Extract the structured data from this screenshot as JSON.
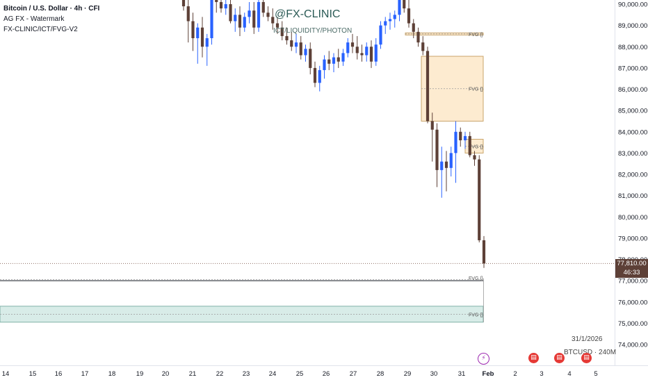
{
  "legend": {
    "symbol": "Bitcoin / U.S. Dollar · 4h · CFI",
    "indicator1": "AG FX - Watermark",
    "indicator2": "FX-CLINIC/ICT/FVG-V2"
  },
  "watermark": {
    "handle": "@FX-CLINIC",
    "subtitle": "ICT/LIQUIDITY/PHOTON"
  },
  "price_tag": {
    "price": "77,810.00",
    "countdown": "46:33"
  },
  "bottom": {
    "date": "31/1/2026",
    "symbol": "BTCUSD",
    "separator": "·",
    "timeframe": "240M"
  },
  "colors": {
    "bull": "#2962ff",
    "bear": "#5d4037",
    "fvg_fill": "#fdebd0",
    "fvg_border": "#c9a46a",
    "teal_fill": "#d8ece8",
    "teal_border": "#7fb0a6"
  },
  "fvg_label": "FVG {}",
  "chart_data": {
    "type": "candlestick",
    "symbol": "Bitcoin / U.S. Dollar",
    "interval": "4h",
    "ylim": [
      73500,
      90500
    ],
    "y_ticks": [
      74000,
      75000,
      76000,
      77000,
      78000,
      79000,
      80000,
      81000,
      82000,
      83000,
      84000,
      85000,
      86000,
      87000,
      88000,
      89000,
      90000
    ],
    "y_tick_labels": [
      "74,000.00",
      "75,000.00",
      "76,000.00",
      "77,000.00",
      "78,000.00",
      "79,000.00",
      "80,000.00",
      "81,000.00",
      "82,000.00",
      "83,000.00",
      "84,000.00",
      "85,000.00",
      "86,000.00",
      "87,000.00",
      "88,000.00",
      "89,000.00",
      "90,000.00"
    ],
    "x_tick_labels": [
      "14",
      "15",
      "16",
      "17",
      "18",
      "19",
      "20",
      "21",
      "22",
      "23",
      "24",
      "25",
      "26",
      "27",
      "28",
      "29",
      "30",
      "31",
      "Feb",
      "2",
      "3",
      "4",
      "5"
    ],
    "last_price": 77810,
    "candles": [
      {
        "o": 90300,
        "h": 90500,
        "l": 89700,
        "c": 89900
      },
      {
        "o": 89900,
        "h": 90200,
        "l": 88200,
        "c": 89200
      },
      {
        "o": 89200,
        "h": 89600,
        "l": 87800,
        "c": 88400
      },
      {
        "o": 88400,
        "h": 89100,
        "l": 87200,
        "c": 88900
      },
      {
        "o": 88900,
        "h": 89400,
        "l": 87500,
        "c": 88000
      },
      {
        "o": 88000,
        "h": 88600,
        "l": 87100,
        "c": 88400
      },
      {
        "o": 88400,
        "h": 90400,
        "l": 88100,
        "c": 90200
      },
      {
        "o": 90200,
        "h": 90500,
        "l": 89600,
        "c": 90100
      },
      {
        "o": 90100,
        "h": 90400,
        "l": 89600,
        "c": 89800
      },
      {
        "o": 89800,
        "h": 90300,
        "l": 89500,
        "c": 90000
      },
      {
        "o": 90000,
        "h": 90200,
        "l": 89100,
        "c": 89200
      },
      {
        "o": 89200,
        "h": 89800,
        "l": 88700,
        "c": 89500
      },
      {
        "o": 89500,
        "h": 89900,
        "l": 88500,
        "c": 88900
      },
      {
        "o": 88900,
        "h": 89600,
        "l": 88700,
        "c": 89400
      },
      {
        "o": 89400,
        "h": 90100,
        "l": 89100,
        "c": 89700
      },
      {
        "o": 89700,
        "h": 90100,
        "l": 88600,
        "c": 88900
      },
      {
        "o": 88900,
        "h": 90500,
        "l": 88700,
        "c": 90100
      },
      {
        "o": 90100,
        "h": 90300,
        "l": 89400,
        "c": 89600
      },
      {
        "o": 89600,
        "h": 89900,
        "l": 89200,
        "c": 89400
      },
      {
        "o": 89400,
        "h": 89800,
        "l": 88800,
        "c": 89100
      },
      {
        "o": 89100,
        "h": 89400,
        "l": 88600,
        "c": 88900
      },
      {
        "o": 88900,
        "h": 89200,
        "l": 88300,
        "c": 88500
      },
      {
        "o": 88500,
        "h": 88900,
        "l": 88100,
        "c": 88300
      },
      {
        "o": 88300,
        "h": 88700,
        "l": 87800,
        "c": 88000
      },
      {
        "o": 88000,
        "h": 88600,
        "l": 87700,
        "c": 88200
      },
      {
        "o": 88200,
        "h": 88500,
        "l": 87400,
        "c": 87600
      },
      {
        "o": 87600,
        "h": 88100,
        "l": 87300,
        "c": 87900
      },
      {
        "o": 87900,
        "h": 88200,
        "l": 86700,
        "c": 87000
      },
      {
        "o": 87000,
        "h": 87300,
        "l": 86100,
        "c": 86300
      },
      {
        "o": 86300,
        "h": 87100,
        "l": 85900,
        "c": 86900
      },
      {
        "o": 86900,
        "h": 87600,
        "l": 86500,
        "c": 87400
      },
      {
        "o": 87400,
        "h": 87800,
        "l": 86900,
        "c": 87200
      },
      {
        "o": 87200,
        "h": 87700,
        "l": 86800,
        "c": 87500
      },
      {
        "o": 87500,
        "h": 87900,
        "l": 87000,
        "c": 87300
      },
      {
        "o": 87300,
        "h": 87900,
        "l": 87100,
        "c": 87700
      },
      {
        "o": 87700,
        "h": 88400,
        "l": 87500,
        "c": 88200
      },
      {
        "o": 88200,
        "h": 88600,
        "l": 87700,
        "c": 88000
      },
      {
        "o": 88000,
        "h": 88500,
        "l": 87400,
        "c": 87700
      },
      {
        "o": 87700,
        "h": 88100,
        "l": 87300,
        "c": 87600
      },
      {
        "o": 87600,
        "h": 88200,
        "l": 87300,
        "c": 88000
      },
      {
        "o": 88000,
        "h": 88300,
        "l": 87000,
        "c": 87300
      },
      {
        "o": 87300,
        "h": 88400,
        "l": 87100,
        "c": 88100
      },
      {
        "o": 88100,
        "h": 89200,
        "l": 87900,
        "c": 89000
      },
      {
        "o": 89000,
        "h": 89400,
        "l": 88600,
        "c": 89200
      },
      {
        "o": 89200,
        "h": 89600,
        "l": 88800,
        "c": 89300
      },
      {
        "o": 89300,
        "h": 89700,
        "l": 88900,
        "c": 89500
      },
      {
        "o": 89500,
        "h": 90400,
        "l": 89200,
        "c": 90200
      },
      {
        "o": 90200,
        "h": 90500,
        "l": 89600,
        "c": 89800
      },
      {
        "o": 89800,
        "h": 90200,
        "l": 88900,
        "c": 89100
      },
      {
        "o": 89100,
        "h": 89300,
        "l": 88400,
        "c": 88700
      },
      {
        "o": 88700,
        "h": 88900,
        "l": 88000,
        "c": 88200
      },
      {
        "o": 88200,
        "h": 88500,
        "l": 87600,
        "c": 87800
      },
      {
        "o": 87800,
        "h": 88000,
        "l": 84400,
        "c": 84500
      },
      {
        "o": 84500,
        "h": 84900,
        "l": 82600,
        "c": 84100
      },
      {
        "o": 84100,
        "h": 84400,
        "l": 81400,
        "c": 82200
      },
      {
        "o": 82200,
        "h": 83300,
        "l": 80900,
        "c": 82600
      },
      {
        "o": 82600,
        "h": 83100,
        "l": 81200,
        "c": 82300
      },
      {
        "o": 82300,
        "h": 83300,
        "l": 81900,
        "c": 83000
      },
      {
        "o": 83000,
        "h": 84500,
        "l": 81600,
        "c": 84000
      },
      {
        "o": 84000,
        "h": 84200,
        "l": 83300,
        "c": 83600
      },
      {
        "o": 83600,
        "h": 84000,
        "l": 83200,
        "c": 83800
      },
      {
        "o": 83800,
        "h": 84000,
        "l": 82800,
        "c": 82900
      },
      {
        "o": 82900,
        "h": 83100,
        "l": 82400,
        "c": 82700
      },
      {
        "o": 82700,
        "h": 82900,
        "l": 78800,
        "c": 78900
      },
      {
        "o": 78900,
        "h": 79100,
        "l": 77600,
        "c": 77810
      }
    ],
    "fvg_zones": [
      {
        "from": 88550,
        "to": 88650,
        "label": "FVG {}"
      },
      {
        "from": 84500,
        "to": 87550,
        "label": "FVG {}"
      },
      {
        "from": 83000,
        "to": 83650,
        "label": "FVG {}"
      },
      {
        "from": 77000,
        "to": 77100,
        "label": "FVG {}"
      },
      {
        "from": 75050,
        "to": 75800,
        "label": "FVG {}"
      }
    ]
  }
}
